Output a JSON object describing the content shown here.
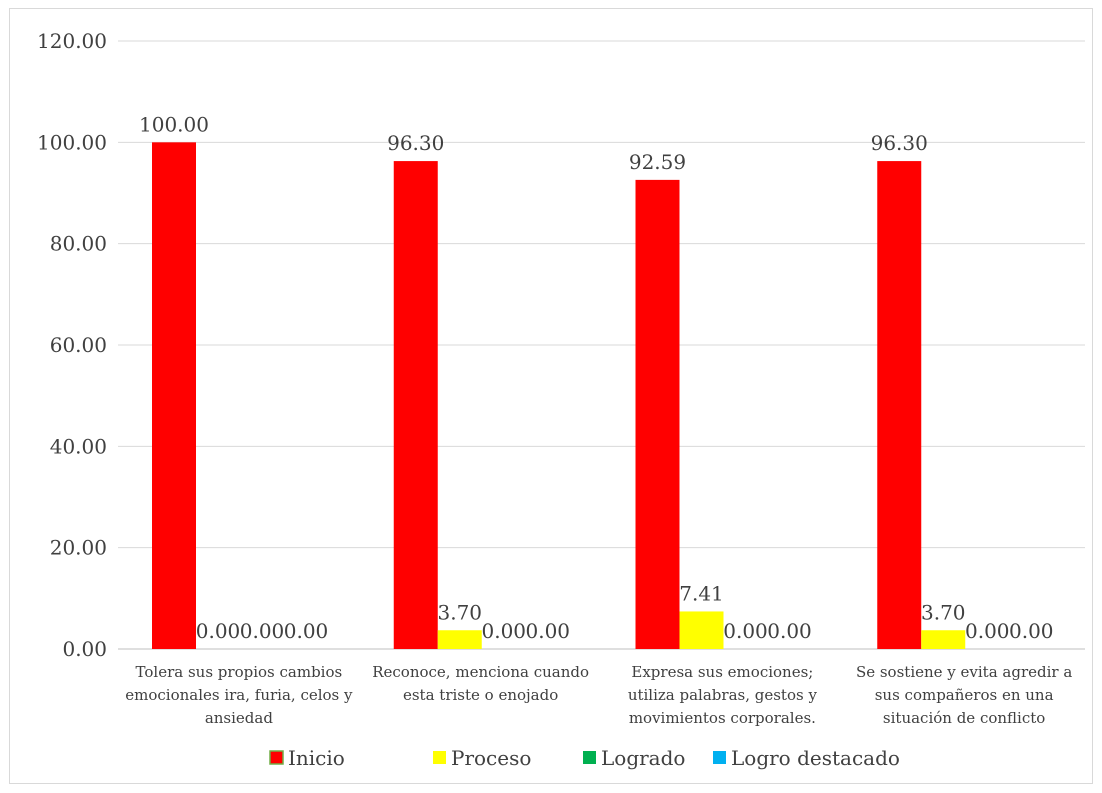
{
  "chart_data": {
    "type": "bar",
    "title": "",
    "xlabel": "",
    "ylabel": "",
    "ylim": [
      0,
      120
    ],
    "yticks": [
      "0.00",
      "20.00",
      "40.00",
      "60.00",
      "80.00",
      "100.00",
      "120.00"
    ],
    "grid": true,
    "legend_position": "bottom",
    "categories": [
      [
        "Tolera sus propios cambios",
        "emocionales ira, furia, celos y",
        "ansiedad"
      ],
      [
        "Reconoce, menciona cuando",
        "esta triste o enojado"
      ],
      [
        "Expresa sus emociones;",
        "utiliza palabras, gestos y",
        "movimientos corporales."
      ],
      [
        "Se sostiene y evita agredir a",
        "sus compañeros en una",
        "situación de conflicto"
      ]
    ],
    "series": [
      {
        "name": "Inicio",
        "color": "#ff0000",
        "values": [
          100.0,
          96.3,
          92.59,
          96.3
        ]
      },
      {
        "name": "Proceso",
        "color": "#ffff00",
        "values": [
          0.0,
          3.7,
          7.41,
          3.7
        ]
      },
      {
        "name": "Logrado",
        "color": "#00b050",
        "values": [
          0.0,
          0.0,
          0.0,
          0.0
        ]
      },
      {
        "name": "Logro destacado",
        "color": "#00b0f0",
        "values": [
          0.0,
          0.0,
          0.0,
          0.0
        ]
      }
    ],
    "data_labels": [
      [
        "100.00",
        "0.00",
        "0.00",
        "0.00"
      ],
      [
        "96.30",
        "3.70",
        "0.00",
        "0.00"
      ],
      [
        "92.59",
        "7.41",
        "0.00",
        "0.00"
      ],
      [
        "96.30",
        "3.70",
        "0.00",
        "0.00"
      ]
    ]
  }
}
